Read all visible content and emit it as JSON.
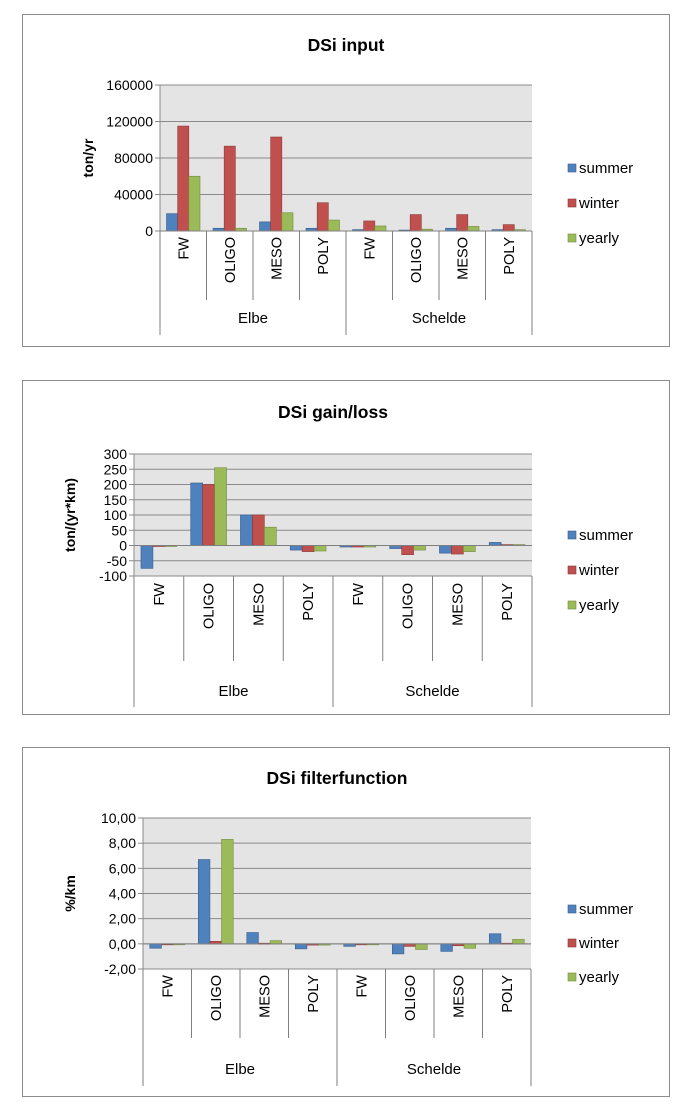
{
  "colors": {
    "summer": "#4f81bd",
    "winter": "#c0504d",
    "yearly": "#9bbb59",
    "summer_edge": "#385d8a",
    "winter_edge": "#8c3836",
    "yearly_edge": "#71893f",
    "plot_bg": "#e4e4e4",
    "grid": "#8a8a8a"
  },
  "chart_data": [
    {
      "type": "bar",
      "title": "DSi input",
      "ylabel": "ton/yr",
      "xlabel": "",
      "ylim": [
        0,
        160000
      ],
      "yticks": [
        0,
        40000,
        80000,
        120000,
        160000
      ],
      "ytick_labels": [
        "0",
        "40000",
        "80000",
        "120000",
        "160000"
      ],
      "categories": [
        "FW",
        "OLIGO",
        "MESO",
        "POLY",
        "FW",
        "OLIGO",
        "MESO",
        "POLY"
      ],
      "groups": [
        "Elbe",
        "Schelde"
      ],
      "legend": [
        "summer",
        "winter",
        "yearly"
      ],
      "series": [
        {
          "name": "summer",
          "values": [
            19000,
            3000,
            10000,
            3000,
            1500,
            1000,
            3000,
            1500
          ]
        },
        {
          "name": "winter",
          "values": [
            115000,
            93000,
            103000,
            31000,
            11000,
            18000,
            18000,
            7000
          ]
        },
        {
          "name": "yearly",
          "values": [
            60000,
            3000,
            20000,
            12000,
            5500,
            2000,
            5000,
            1500
          ]
        }
      ]
    },
    {
      "type": "bar",
      "title": "DSi gain/loss",
      "ylabel": "ton/(yr*km)",
      "xlabel": "",
      "ylim": [
        -100,
        300
      ],
      "yticks": [
        -100,
        -50,
        0,
        50,
        100,
        150,
        200,
        250,
        300
      ],
      "ytick_labels": [
        "-100",
        "-50",
        "0",
        "50",
        "100",
        "150",
        "200",
        "250",
        "300"
      ],
      "categories": [
        "FW",
        "OLIGO",
        "MESO",
        "POLY",
        "FW",
        "OLIGO",
        "MESO",
        "POLY"
      ],
      "groups": [
        "Elbe",
        "Schelde"
      ],
      "legend": [
        "summer",
        "winter",
        "yearly"
      ],
      "series": [
        {
          "name": "summer",
          "values": [
            -75,
            205,
            100,
            -15,
            -5,
            -10,
            -25,
            10
          ]
        },
        {
          "name": "winter",
          "values": [
            -2,
            200,
            100,
            -20,
            -5,
            -30,
            -28,
            3
          ]
        },
        {
          "name": "yearly",
          "values": [
            -2,
            255,
            60,
            -18,
            -5,
            -15,
            -20,
            3
          ]
        }
      ]
    },
    {
      "type": "bar",
      "title": "DSi filterfunction",
      "ylabel": "%/km",
      "xlabel": "",
      "ylim": [
        -2,
        10
      ],
      "yticks": [
        -2,
        0,
        2,
        4,
        6,
        8,
        10
      ],
      "ytick_labels": [
        "-2,00",
        "0,00",
        "2,00",
        "4,00",
        "6,00",
        "8,00",
        "10,00"
      ],
      "categories": [
        "FW",
        "OLIGO",
        "MESO",
        "POLY",
        "FW",
        "OLIGO",
        "MESO",
        "POLY"
      ],
      "groups": [
        "Elbe",
        "Schelde"
      ],
      "legend": [
        "summer",
        "winter",
        "yearly"
      ],
      "series": [
        {
          "name": "summer",
          "values": [
            -0.35,
            6.7,
            0.9,
            -0.4,
            -0.2,
            -0.8,
            -0.6,
            0.8
          ]
        },
        {
          "name": "winter",
          "values": [
            -0.05,
            0.2,
            0.05,
            -0.1,
            -0.05,
            -0.2,
            -0.15,
            0.05
          ]
        },
        {
          "name": "yearly",
          "values": [
            -0.05,
            8.3,
            0.25,
            -0.1,
            -0.05,
            -0.45,
            -0.35,
            0.35
          ]
        }
      ]
    }
  ]
}
